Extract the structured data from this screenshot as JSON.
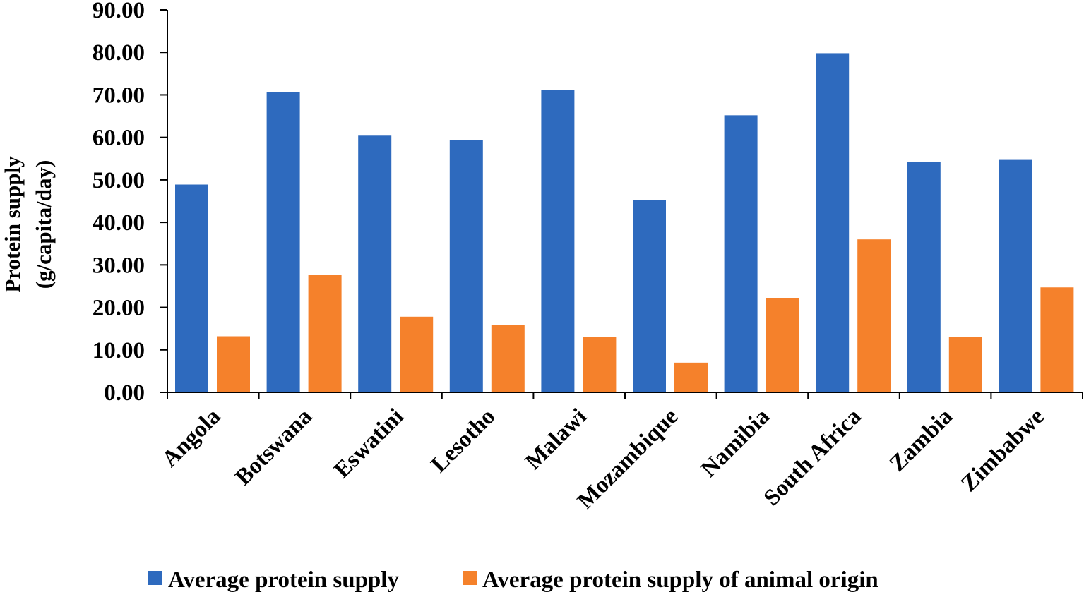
{
  "chart_data": {
    "type": "bar",
    "title": "",
    "xlabel": "",
    "ylabel_lines": [
      "Protein supply",
      "(g/capita/day)"
    ],
    "ylim": [
      0,
      90
    ],
    "yticks": [
      "0.00",
      "10.00",
      "20.00",
      "30.00",
      "40.00",
      "50.00",
      "60.00",
      "70.00",
      "80.00",
      "90.00"
    ],
    "grid": false,
    "legend_position": "bottom",
    "categories": [
      "Angola",
      "Botswana",
      "Eswatini",
      "Lesotho",
      "Malawi",
      "Mozambique",
      "Namibia",
      "South Africa",
      "Zambia",
      "Zimbabwe"
    ],
    "series": [
      {
        "name": "Average protein supply",
        "color": "#2E6ABE",
        "values": [
          48.9,
          70.7,
          60.4,
          59.3,
          71.2,
          45.3,
          65.2,
          79.8,
          54.3,
          54.7
        ]
      },
      {
        "name": "Average protein supply of animal origin",
        "color": "#F5812B",
        "values": [
          13.2,
          27.6,
          17.8,
          15.8,
          13.0,
          7.0,
          22.1,
          36.0,
          13.0,
          24.7
        ]
      }
    ]
  }
}
